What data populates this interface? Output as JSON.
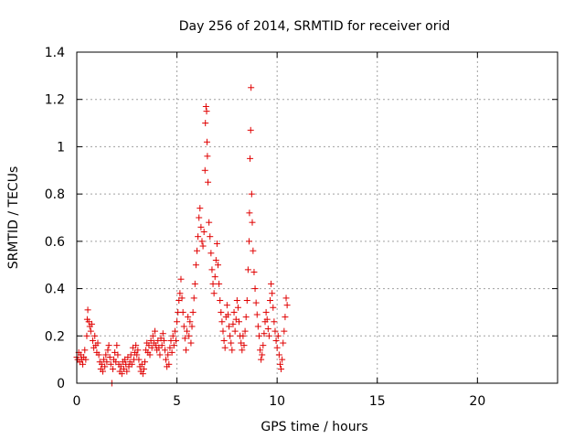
{
  "chart_data": {
    "type": "scatter",
    "title": "Day 256 of 2014, SRMTID for receiver orid",
    "xlabel": "GPS time / hours",
    "ylabel": "SRMTID / TECUs",
    "xlim": [
      0,
      24
    ],
    "ylim": [
      0,
      1.4
    ],
    "grid": true,
    "marker": "+",
    "point_color": "#e00000",
    "x_ticks": [
      {
        "value": 0,
        "label": "0"
      },
      {
        "value": 5,
        "label": "5"
      },
      {
        "value": 10,
        "label": "10"
      },
      {
        "value": 15,
        "label": "15"
      },
      {
        "value": 20,
        "label": "20"
      }
    ],
    "y_ticks": [
      {
        "value": 0,
        "label": "0"
      },
      {
        "value": 0.2,
        "label": "0.2"
      },
      {
        "value": 0.4,
        "label": "0.4"
      },
      {
        "value": 0.6,
        "label": "0.6"
      },
      {
        "value": 0.8,
        "label": "0.8"
      },
      {
        "value": 1.0,
        "label": "1"
      },
      {
        "value": 1.2,
        "label": "1.2"
      },
      {
        "value": 1.4,
        "label": "1.4"
      }
    ],
    "series": [
      {
        "name": "SRMTID",
        "points": [
          [
            0.0,
            0.11
          ],
          [
            0.05,
            0.1
          ],
          [
            0.1,
            0.13
          ],
          [
            0.15,
            0.09
          ],
          [
            0.2,
            0.12
          ],
          [
            0.25,
            0.1
          ],
          [
            0.3,
            0.08
          ],
          [
            0.35,
            0.11
          ],
          [
            0.4,
            0.14
          ],
          [
            0.45,
            0.1
          ],
          [
            0.5,
            0.2
          ],
          [
            0.52,
            0.27
          ],
          [
            0.55,
            0.31
          ],
          [
            0.6,
            0.26
          ],
          [
            0.65,
            0.24
          ],
          [
            0.7,
            0.22
          ],
          [
            0.75,
            0.25
          ],
          [
            0.8,
            0.18
          ],
          [
            0.85,
            0.15
          ],
          [
            0.9,
            0.2
          ],
          [
            0.95,
            0.16
          ],
          [
            1.0,
            0.13
          ],
          [
            1.05,
            0.17
          ],
          [
            1.1,
            0.12
          ],
          [
            1.15,
            0.09
          ],
          [
            1.2,
            0.06
          ],
          [
            1.25,
            0.08
          ],
          [
            1.3,
            0.05
          ],
          [
            1.35,
            0.1
          ],
          [
            1.4,
            0.07
          ],
          [
            1.45,
            0.12
          ],
          [
            1.5,
            0.09
          ],
          [
            1.55,
            0.14
          ],
          [
            1.6,
            0.16
          ],
          [
            1.65,
            0.11
          ],
          [
            1.7,
            0.08
          ],
          [
            1.75,
            0.0
          ],
          [
            1.8,
            0.06
          ],
          [
            1.85,
            0.1
          ],
          [
            1.9,
            0.13
          ],
          [
            1.95,
            0.09
          ],
          [
            2.0,
            0.16
          ],
          [
            2.05,
            0.12
          ],
          [
            2.1,
            0.08
          ],
          [
            2.15,
            0.05
          ],
          [
            2.2,
            0.07
          ],
          [
            2.25,
            0.04
          ],
          [
            2.3,
            0.09
          ],
          [
            2.35,
            0.06
          ],
          [
            2.4,
            0.1
          ],
          [
            2.45,
            0.08
          ],
          [
            2.5,
            0.05
          ],
          [
            2.55,
            0.11
          ],
          [
            2.6,
            0.07
          ],
          [
            2.65,
            0.09
          ],
          [
            2.7,
            0.12
          ],
          [
            2.75,
            0.08
          ],
          [
            2.8,
            0.15
          ],
          [
            2.85,
            0.1
          ],
          [
            2.9,
            0.13
          ],
          [
            2.95,
            0.16
          ],
          [
            3.0,
            0.12
          ],
          [
            3.05,
            0.14
          ],
          [
            3.1,
            0.1
          ],
          [
            3.15,
            0.07
          ],
          [
            3.2,
            0.05
          ],
          [
            3.25,
            0.08
          ],
          [
            3.3,
            0.04
          ],
          [
            3.35,
            0.06
          ],
          [
            3.4,
            0.09
          ],
          [
            3.45,
            0.14
          ],
          [
            3.5,
            0.17
          ],
          [
            3.55,
            0.13
          ],
          [
            3.6,
            0.16
          ],
          [
            3.65,
            0.12
          ],
          [
            3.7,
            0.18
          ],
          [
            3.75,
            0.15
          ],
          [
            3.8,
            0.2
          ],
          [
            3.85,
            0.17
          ],
          [
            3.9,
            0.22
          ],
          [
            3.95,
            0.16
          ],
          [
            4.0,
            0.14
          ],
          [
            4.05,
            0.18
          ],
          [
            4.1,
            0.15
          ],
          [
            4.15,
            0.12
          ],
          [
            4.2,
            0.19
          ],
          [
            4.25,
            0.16
          ],
          [
            4.3,
            0.21
          ],
          [
            4.35,
            0.18
          ],
          [
            4.4,
            0.14
          ],
          [
            4.45,
            0.1
          ],
          [
            4.5,
            0.07
          ],
          [
            4.55,
            0.12
          ],
          [
            4.6,
            0.08
          ],
          [
            4.65,
            0.15
          ],
          [
            4.7,
            0.18
          ],
          [
            4.75,
            0.13
          ],
          [
            4.8,
            0.2
          ],
          [
            4.85,
            0.16
          ],
          [
            4.9,
            0.22
          ],
          [
            4.95,
            0.18
          ],
          [
            5.0,
            0.26
          ],
          [
            5.05,
            0.3
          ],
          [
            5.1,
            0.35
          ],
          [
            5.15,
            0.38
          ],
          [
            5.2,
            0.44
          ],
          [
            5.25,
            0.36
          ],
          [
            5.3,
            0.3
          ],
          [
            5.35,
            0.24
          ],
          [
            5.4,
            0.19
          ],
          [
            5.45,
            0.14
          ],
          [
            5.5,
            0.22
          ],
          [
            5.55,
            0.28
          ],
          [
            5.6,
            0.2
          ],
          [
            5.65,
            0.26
          ],
          [
            5.7,
            0.17
          ],
          [
            5.75,
            0.24
          ],
          [
            5.8,
            0.3
          ],
          [
            5.85,
            0.36
          ],
          [
            5.9,
            0.42
          ],
          [
            5.95,
            0.5
          ],
          [
            6.0,
            0.56
          ],
          [
            6.05,
            0.62
          ],
          [
            6.1,
            0.7
          ],
          [
            6.15,
            0.74
          ],
          [
            6.2,
            0.66
          ],
          [
            6.25,
            0.6
          ],
          [
            6.3,
            0.58
          ],
          [
            6.35,
            0.64
          ],
          [
            6.4,
            0.9
          ],
          [
            6.42,
            1.1
          ],
          [
            6.45,
            1.17
          ],
          [
            6.48,
            1.15
          ],
          [
            6.5,
            1.02
          ],
          [
            6.52,
            0.96
          ],
          [
            6.55,
            0.85
          ],
          [
            6.6,
            0.68
          ],
          [
            6.65,
            0.62
          ],
          [
            6.7,
            0.55
          ],
          [
            6.75,
            0.48
          ],
          [
            6.8,
            0.42
          ],
          [
            6.85,
            0.38
          ],
          [
            6.9,
            0.45
          ],
          [
            6.95,
            0.52
          ],
          [
            7.0,
            0.59
          ],
          [
            7.05,
            0.5
          ],
          [
            7.1,
            0.42
          ],
          [
            7.15,
            0.35
          ],
          [
            7.2,
            0.3
          ],
          [
            7.25,
            0.26
          ],
          [
            7.3,
            0.22
          ],
          [
            7.35,
            0.18
          ],
          [
            7.4,
            0.15
          ],
          [
            7.45,
            0.28
          ],
          [
            7.5,
            0.33
          ],
          [
            7.55,
            0.29
          ],
          [
            7.6,
            0.24
          ],
          [
            7.65,
            0.2
          ],
          [
            7.7,
            0.17
          ],
          [
            7.75,
            0.14
          ],
          [
            7.8,
            0.25
          ],
          [
            7.85,
            0.3
          ],
          [
            7.9,
            0.22
          ],
          [
            7.95,
            0.27
          ],
          [
            8.0,
            0.35
          ],
          [
            8.05,
            0.32
          ],
          [
            8.1,
            0.26
          ],
          [
            8.15,
            0.2
          ],
          [
            8.2,
            0.17
          ],
          [
            8.25,
            0.14
          ],
          [
            8.3,
            0.2
          ],
          [
            8.35,
            0.16
          ],
          [
            8.4,
            0.22
          ],
          [
            8.45,
            0.28
          ],
          [
            8.5,
            0.35
          ],
          [
            8.55,
            0.48
          ],
          [
            8.6,
            0.6
          ],
          [
            8.62,
            0.72
          ],
          [
            8.65,
            0.95
          ],
          [
            8.68,
            1.07
          ],
          [
            8.7,
            1.25
          ],
          [
            8.73,
            0.8
          ],
          [
            8.76,
            0.68
          ],
          [
            8.8,
            0.56
          ],
          [
            8.85,
            0.47
          ],
          [
            8.9,
            0.4
          ],
          [
            8.95,
            0.34
          ],
          [
            9.0,
            0.29
          ],
          [
            9.05,
            0.24
          ],
          [
            9.1,
            0.2
          ],
          [
            9.15,
            0.14
          ],
          [
            9.2,
            0.1
          ],
          [
            9.25,
            0.12
          ],
          [
            9.3,
            0.16
          ],
          [
            9.35,
            0.21
          ],
          [
            9.4,
            0.26
          ],
          [
            9.45,
            0.3
          ],
          [
            9.5,
            0.27
          ],
          [
            9.55,
            0.23
          ],
          [
            9.6,
            0.2
          ],
          [
            9.65,
            0.35
          ],
          [
            9.7,
            0.42
          ],
          [
            9.75,
            0.38
          ],
          [
            9.8,
            0.32
          ],
          [
            9.85,
            0.26
          ],
          [
            9.9,
            0.22
          ],
          [
            9.95,
            0.18
          ],
          [
            10.0,
            0.15
          ],
          [
            10.05,
            0.2
          ],
          [
            10.1,
            0.12
          ],
          [
            10.15,
            0.08
          ],
          [
            10.2,
            0.06
          ],
          [
            10.25,
            0.1
          ],
          [
            10.3,
            0.17
          ],
          [
            10.35,
            0.22
          ],
          [
            10.4,
            0.28
          ],
          [
            10.45,
            0.36
          ],
          [
            10.5,
            0.33
          ]
        ]
      }
    ]
  }
}
